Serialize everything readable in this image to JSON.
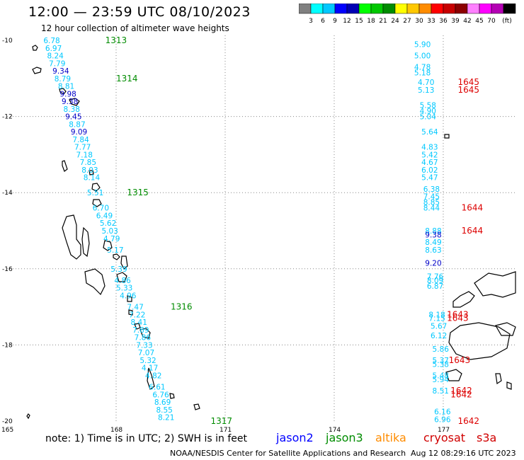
{
  "header": {
    "title": "12:00 — 23:59 UTC 08/10/2023",
    "subtitle": "12 hour collection of altimeter wave heights"
  },
  "legend": {
    "colors": [
      "#808080",
      "#00ffff",
      "#00c8ff",
      "#0000ff",
      "#0000b4",
      "#00ff00",
      "#00c800",
      "#008c00",
      "#ffff00",
      "#ffc800",
      "#ff8c00",
      "#ff0000",
      "#c80000",
      "#8c0000",
      "#ff80ff",
      "#ff00ff",
      "#b400b4",
      "#000000"
    ],
    "ticks": [
      "3",
      "6",
      "9",
      "12",
      "15",
      "18",
      "21",
      "24",
      "27",
      "30",
      "33",
      "36",
      "39",
      "42",
      "45",
      "70"
    ],
    "unit": "(ft)"
  },
  "axes": {
    "lat_labels": [
      "-10",
      "-12",
      "-14",
      "-16",
      "-18",
      "-20"
    ],
    "lon_labels": [
      "165",
      "168",
      "171",
      "174",
      "177"
    ]
  },
  "track_west": {
    "passes": [
      {
        "label": "1313",
        "lon": 167.7,
        "lat": -10.0
      },
      {
        "label": "1314",
        "lon": 168.0,
        "lat": -11.0
      },
      {
        "label": "1315",
        "lon": 168.3,
        "lat": -14.0
      },
      {
        "label": "1316",
        "lon": 169.5,
        "lat": -17.0
      },
      {
        "label": "1317",
        "lon": 170.6,
        "lat": -20.0
      }
    ],
    "values": [
      {
        "v": "6.78",
        "c": "c",
        "lon": 166.0,
        "lat": -10.0
      },
      {
        "v": "6.97",
        "c": "c",
        "lon": 166.05,
        "lat": -10.2
      },
      {
        "v": "8.24",
        "c": "c",
        "lon": 166.1,
        "lat": -10.4
      },
      {
        "v": "7.79",
        "c": "c",
        "lon": 166.15,
        "lat": -10.6
      },
      {
        "v": "9.34",
        "c": "b",
        "lon": 166.25,
        "lat": -10.8
      },
      {
        "v": "8.79",
        "c": "c",
        "lon": 166.3,
        "lat": -11.0
      },
      {
        "v": "8.81",
        "c": "c",
        "lon": 166.4,
        "lat": -11.2
      },
      {
        "v": "9.98",
        "c": "b",
        "lon": 166.45,
        "lat": -11.4
      },
      {
        "v": "9.38",
        "c": "b",
        "lon": 166.5,
        "lat": -11.6
      },
      {
        "v": "8.38",
        "c": "c",
        "lon": 166.55,
        "lat": -11.8
      },
      {
        "v": "9.45",
        "c": "b",
        "lon": 166.6,
        "lat": -12.0
      },
      {
        "v": "8.87",
        "c": "c",
        "lon": 166.7,
        "lat": -12.2
      },
      {
        "v": "9.09",
        "c": "b",
        "lon": 166.75,
        "lat": -12.4
      },
      {
        "v": "7.84",
        "c": "c",
        "lon": 166.8,
        "lat": -12.6
      },
      {
        "v": "7.77",
        "c": "c",
        "lon": 166.85,
        "lat": -12.8
      },
      {
        "v": "7.18",
        "c": "c",
        "lon": 166.9,
        "lat": -13.0
      },
      {
        "v": "7.85",
        "c": "c",
        "lon": 167.0,
        "lat": -13.2
      },
      {
        "v": "8.03",
        "c": "c",
        "lon": 167.05,
        "lat": -13.4
      },
      {
        "v": "8.14",
        "c": "c",
        "lon": 167.1,
        "lat": -13.6
      },
      {
        "v": "5.51",
        "c": "c",
        "lon": 167.2,
        "lat": -14.0
      },
      {
        "v": "6.70",
        "c": "c",
        "lon": 167.35,
        "lat": -14.4
      },
      {
        "v": "6.49",
        "c": "c",
        "lon": 167.45,
        "lat": -14.6
      },
      {
        "v": "5.62",
        "c": "c",
        "lon": 167.55,
        "lat": -14.8
      },
      {
        "v": "5.03",
        "c": "c",
        "lon": 167.6,
        "lat": -15.0
      },
      {
        "v": "4.79",
        "c": "c",
        "lon": 167.65,
        "lat": -15.2
      },
      {
        "v": "5.17",
        "c": "c",
        "lon": 167.75,
        "lat": -15.5
      },
      {
        "v": "5.39",
        "c": "c",
        "lon": 167.85,
        "lat": -16.0
      },
      {
        "v": "4.86",
        "c": "c",
        "lon": 167.95,
        "lat": -16.3
      },
      {
        "v": "5.33",
        "c": "c",
        "lon": 168.0,
        "lat": -16.5
      },
      {
        "v": "4.96",
        "c": "c",
        "lon": 168.1,
        "lat": -16.7
      },
      {
        "v": "7.47",
        "c": "c",
        "lon": 168.3,
        "lat": -17.0
      },
      {
        "v": "7.22",
        "c": "c",
        "lon": 168.35,
        "lat": -17.2
      },
      {
        "v": "8.41",
        "c": "c",
        "lon": 168.4,
        "lat": -17.4
      },
      {
        "v": "7.89",
        "c": "c",
        "lon": 168.45,
        "lat": -17.6
      },
      {
        "v": "7.86",
        "c": "c",
        "lon": 168.5,
        "lat": -17.8
      },
      {
        "v": "7.33",
        "c": "c",
        "lon": 168.55,
        "lat": -18.0
      },
      {
        "v": "7.07",
        "c": "c",
        "lon": 168.6,
        "lat": -18.2
      },
      {
        "v": "5.32",
        "c": "c",
        "lon": 168.65,
        "lat": -18.4
      },
      {
        "v": "4.17",
        "c": "c",
        "lon": 168.7,
        "lat": -18.6
      },
      {
        "v": "4.82",
        "c": "c",
        "lon": 168.8,
        "lat": -18.8
      },
      {
        "v": "6.61",
        "c": "c",
        "lon": 168.9,
        "lat": -19.1
      },
      {
        "v": "6.76",
        "c": "c",
        "lon": 169.0,
        "lat": -19.3
      },
      {
        "v": "8.69",
        "c": "c",
        "lon": 169.05,
        "lat": -19.5
      },
      {
        "v": "8.55",
        "c": "c",
        "lon": 169.1,
        "lat": -19.7
      },
      {
        "v": "8.21",
        "c": "c",
        "lon": 169.15,
        "lat": -19.9
      }
    ]
  },
  "track_east": {
    "passes": [
      {
        "label": "1645",
        "lon": 177.4,
        "lat": -11.1
      },
      {
        "label": "1645",
        "lon": 177.4,
        "lat": -11.3
      },
      {
        "label": "1644",
        "lon": 177.5,
        "lat": -14.4
      },
      {
        "label": "1644",
        "lon": 177.5,
        "lat": -15.0
      },
      {
        "label": "1643",
        "lon": 177.1,
        "lat": -17.2
      },
      {
        "label": "1643",
        "lon": 177.1,
        "lat": -17.3
      },
      {
        "label": "1643",
        "lon": 177.15,
        "lat": -18.4
      },
      {
        "label": "1642",
        "lon": 177.2,
        "lat": -19.2
      },
      {
        "label": "1642",
        "lon": 177.2,
        "lat": -19.3
      },
      {
        "label": "1642",
        "lon": 177.4,
        "lat": -20.0
      }
    ],
    "values": [
      {
        "v": "5.90",
        "c": "c",
        "lon": 176.2,
        "lat": -10.1
      },
      {
        "v": "5.00",
        "c": "c",
        "lon": 176.2,
        "lat": -10.4
      },
      {
        "v": "4.78",
        "c": "c",
        "lon": 176.2,
        "lat": -10.7
      },
      {
        "v": "5.18",
        "c": "c",
        "lon": 176.2,
        "lat": -10.85
      },
      {
        "v": "4.70",
        "c": "c",
        "lon": 176.3,
        "lat": -11.1
      },
      {
        "v": "5.13",
        "c": "c",
        "lon": 176.3,
        "lat": -11.3
      },
      {
        "v": "5.58",
        "c": "c",
        "lon": 176.35,
        "lat": -11.7
      },
      {
        "v": "4.90",
        "c": "c",
        "lon": 176.35,
        "lat": -11.85
      },
      {
        "v": "5.04",
        "c": "c",
        "lon": 176.35,
        "lat": -12.0
      },
      {
        "v": "5.64",
        "c": "c",
        "lon": 176.4,
        "lat": -12.4
      },
      {
        "v": "4.83",
        "c": "c",
        "lon": 176.4,
        "lat": -12.8
      },
      {
        "v": "5.42",
        "c": "c",
        "lon": 176.4,
        "lat": -13.0
      },
      {
        "v": "4.67",
        "c": "c",
        "lon": 176.4,
        "lat": -13.2
      },
      {
        "v": "6.02",
        "c": "c",
        "lon": 176.4,
        "lat": -13.4
      },
      {
        "v": "5.47",
        "c": "c",
        "lon": 176.4,
        "lat": -13.6
      },
      {
        "v": "6.38",
        "c": "c",
        "lon": 176.45,
        "lat": -13.9
      },
      {
        "v": "7.45",
        "c": "c",
        "lon": 176.45,
        "lat": -14.1
      },
      {
        "v": "8.85",
        "c": "c",
        "lon": 176.45,
        "lat": -14.25
      },
      {
        "v": "8.44",
        "c": "c",
        "lon": 176.45,
        "lat": -14.4
      },
      {
        "v": "8.88",
        "c": "c",
        "lon": 176.5,
        "lat": -15.0
      },
      {
        "v": "9.38",
        "c": "b",
        "lon": 176.5,
        "lat": -15.1
      },
      {
        "v": "8.49",
        "c": "c",
        "lon": 176.5,
        "lat": -15.3
      },
      {
        "v": "8.63",
        "c": "c",
        "lon": 176.5,
        "lat": -15.5
      },
      {
        "v": "9.20",
        "c": "b",
        "lon": 176.5,
        "lat": -15.85
      },
      {
        "v": "7.76",
        "c": "c",
        "lon": 176.55,
        "lat": -16.2
      },
      {
        "v": "8.09",
        "c": "c",
        "lon": 176.55,
        "lat": -16.3
      },
      {
        "v": "6.87",
        "c": "c",
        "lon": 176.55,
        "lat": -16.45
      },
      {
        "v": "8.18",
        "c": "c",
        "lon": 176.6,
        "lat": -17.2
      },
      {
        "v": "7.15",
        "c": "c",
        "lon": 176.6,
        "lat": -17.3
      },
      {
        "v": "5.67",
        "c": "c",
        "lon": 176.65,
        "lat": -17.5
      },
      {
        "v": "6.12",
        "c": "c",
        "lon": 176.65,
        "lat": -17.75
      },
      {
        "v": "5.86",
        "c": "c",
        "lon": 176.7,
        "lat": -18.1
      },
      {
        "v": "5.37",
        "c": "c",
        "lon": 176.7,
        "lat": -18.4
      },
      {
        "v": "5.38",
        "c": "c",
        "lon": 176.7,
        "lat": -18.5
      },
      {
        "v": "5.48",
        "c": "c",
        "lon": 176.7,
        "lat": -18.8
      },
      {
        "v": "5.94",
        "c": "c",
        "lon": 176.7,
        "lat": -18.9
      },
      {
        "v": "8.51",
        "c": "c",
        "lon": 176.7,
        "lat": -19.2
      },
      {
        "v": "6.16",
        "c": "c",
        "lon": 176.75,
        "lat": -19.75
      },
      {
        "v": "6.96",
        "c": "c",
        "lon": 176.75,
        "lat": -19.95
      }
    ]
  },
  "footer": {
    "note": "note: 1) Time is in UTC; 2) SWH is in feet",
    "satellites": [
      {
        "name": "jason2",
        "color": "#0000ff"
      },
      {
        "name": "jason3",
        "color": "#008c00"
      },
      {
        "name": "altika",
        "color": "#ff8c00"
      },
      {
        "name": "cryosat",
        "color": "#d00000"
      },
      {
        "name": "s3a",
        "color": "#d00000"
      }
    ],
    "source": "NOAA/NESDIS Center for Satellite Applications and Research",
    "timestamp": "Aug 12 08:29:16 UTC 2023"
  },
  "colors": {
    "cyan_value": "#00c8ff",
    "blue_value": "#0000c8",
    "pass_green": "#008c00",
    "pass_red": "#dd0000"
  }
}
